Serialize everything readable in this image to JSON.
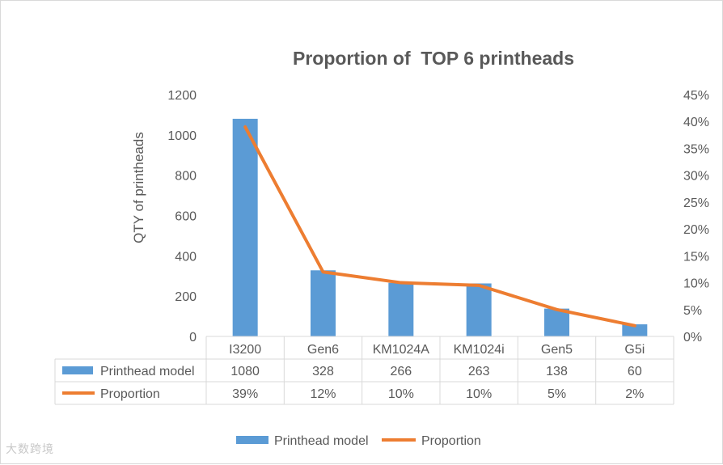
{
  "chart_data": {
    "type": "bar+line",
    "title": "Proportion of  TOP 6 printheads",
    "ylabel": "QTY of printheads",
    "y2label": "",
    "categories": [
      "I3200",
      "Gen6",
      "KM1024A",
      "KM1024i",
      "Gen5",
      "G5i"
    ],
    "series": [
      {
        "name": "Printhead model",
        "kind": "bar",
        "axis": "left",
        "color": "#5b9bd5",
        "values": [
          1080,
          328,
          266,
          263,
          138,
          60
        ],
        "labels": [
          "1080",
          "328",
          "266",
          "263",
          "138",
          "60"
        ]
      },
      {
        "name": "Proportion",
        "kind": "line",
        "axis": "right",
        "color": "#ed7d31",
        "values": [
          39,
          12,
          10,
          9.5,
          5,
          2
        ],
        "labels": [
          "39%",
          "12%",
          "10%",
          "10%",
          "5%",
          "2%"
        ]
      }
    ],
    "ylim": [
      0,
      1200
    ],
    "yticks": [
      "0",
      "200",
      "400",
      "600",
      "800",
      "1000",
      "1200"
    ],
    "y2lim": [
      0,
      45
    ],
    "y2ticks": [
      "0%",
      "5%",
      "10%",
      "15%",
      "20%",
      "25%",
      "30%",
      "35%",
      "40%",
      "45%"
    ],
    "grid": false,
    "legend": "bottom",
    "data_table": true
  },
  "watermark": "大数跨境"
}
